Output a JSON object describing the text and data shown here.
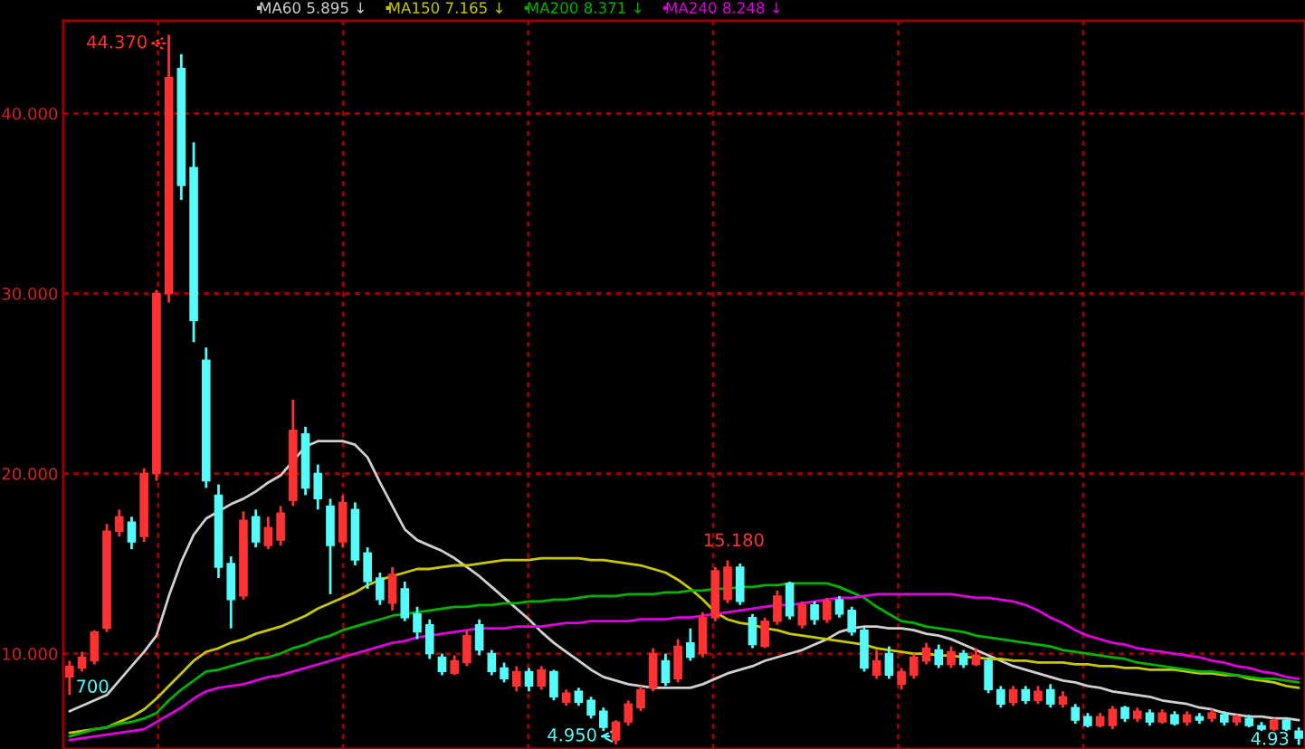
{
  "chart_data": {
    "type": "candlestick",
    "categories": [
      null,
      null,
      null,
      null,
      null,
      null,
      null,
      null,
      null,
      null,
      null,
      null,
      null,
      null,
      null,
      null,
      null,
      null,
      null,
      null,
      null,
      null,
      null,
      null,
      null,
      null,
      null,
      null,
      null,
      null,
      null,
      null,
      null,
      null,
      null,
      null,
      null,
      null,
      null,
      null,
      null,
      null,
      null,
      null,
      null,
      null,
      null,
      null,
      null,
      null,
      null,
      null,
      null,
      null,
      null,
      null,
      null,
      null,
      null,
      null,
      null,
      null,
      null,
      null,
      null,
      null,
      null,
      null,
      null,
      null,
      null,
      null,
      null,
      null,
      null,
      null,
      null,
      null,
      null,
      null,
      null,
      null,
      null,
      null,
      null,
      null,
      null,
      null,
      null,
      null,
      null,
      null,
      null,
      null,
      null,
      null,
      null,
      null,
      null,
      null
    ],
    "ohlc": [
      [
        8.7,
        9.6,
        7.7,
        9.3
      ],
      [
        9.2,
        10.1,
        9.0,
        9.8
      ],
      [
        9.6,
        11.3,
        9.4,
        11.2
      ],
      [
        11.4,
        17.2,
        11.2,
        16.8
      ],
      [
        16.8,
        18.0,
        16.5,
        17.6
      ],
      [
        17.3,
        17.6,
        15.8,
        16.2
      ],
      [
        16.5,
        20.3,
        16.2,
        20.0
      ],
      [
        20.0,
        30.2,
        19.6,
        30.0
      ],
      [
        30.0,
        44.37,
        29.5,
        42.0
      ],
      [
        42.5,
        43.3,
        35.2,
        36.0
      ],
      [
        37.0,
        38.4,
        27.3,
        28.5
      ],
      [
        26.3,
        27.0,
        19.2,
        19.6
      ],
      [
        18.8,
        19.4,
        14.2,
        14.8
      ],
      [
        15.0,
        15.4,
        11.4,
        13.0
      ],
      [
        13.2,
        17.9,
        13.0,
        17.4
      ],
      [
        17.6,
        18.0,
        15.9,
        16.2
      ],
      [
        16.0,
        17.6,
        15.8,
        17.0
      ],
      [
        16.3,
        18.2,
        16.0,
        17.8
      ],
      [
        18.5,
        24.1,
        18.2,
        22.4
      ],
      [
        22.2,
        22.6,
        18.8,
        19.2
      ],
      [
        20.0,
        20.5,
        18.0,
        18.6
      ],
      [
        18.2,
        18.6,
        13.3,
        16.0
      ],
      [
        16.2,
        18.8,
        15.9,
        18.4
      ],
      [
        18.0,
        18.4,
        14.9,
        15.2
      ],
      [
        15.6,
        15.9,
        13.6,
        14.0
      ],
      [
        14.2,
        14.5,
        12.7,
        13.0
      ],
      [
        12.8,
        14.8,
        12.4,
        14.4
      ],
      [
        13.6,
        14.0,
        11.8,
        12.0
      ],
      [
        12.2,
        12.6,
        10.8,
        11.2
      ],
      [
        11.6,
        11.9,
        9.7,
        10.0
      ],
      [
        9.8,
        10.0,
        8.8,
        9.0
      ],
      [
        8.9,
        9.9,
        8.8,
        9.6
      ],
      [
        9.5,
        11.3,
        9.3,
        11.0
      ],
      [
        11.6,
        11.9,
        9.9,
        10.2
      ],
      [
        10.0,
        10.2,
        8.8,
        9.0
      ],
      [
        9.2,
        9.5,
        8.4,
        8.6
      ],
      [
        8.2,
        9.3,
        7.9,
        9.0
      ],
      [
        9.0,
        9.2,
        7.9,
        8.2
      ],
      [
        8.2,
        9.3,
        8.0,
        9.1
      ],
      [
        9.0,
        9.1,
        7.4,
        7.6
      ],
      [
        7.3,
        8.0,
        7.1,
        7.8
      ],
      [
        7.9,
        8.1,
        7.1,
        7.3
      ],
      [
        7.4,
        7.6,
        6.4,
        6.6
      ],
      [
        6.8,
        7.0,
        5.7,
        5.9
      ],
      [
        5.2,
        6.3,
        4.95,
        6.2
      ],
      [
        6.2,
        7.4,
        6.0,
        7.2
      ],
      [
        7.0,
        8.2,
        6.8,
        8.0
      ],
      [
        8.1,
        10.3,
        7.9,
        10.0
      ],
      [
        9.6,
        10.0,
        8.2,
        8.4
      ],
      [
        8.6,
        10.8,
        8.4,
        10.4
      ],
      [
        10.6,
        11.4,
        9.6,
        9.8
      ],
      [
        10.0,
        12.3,
        9.8,
        12.0
      ],
      [
        12.0,
        14.8,
        11.8,
        14.6
      ],
      [
        13.0,
        15.18,
        12.8,
        14.8
      ],
      [
        14.8,
        15.0,
        12.7,
        12.9
      ],
      [
        12.0,
        12.2,
        10.3,
        10.5
      ],
      [
        10.4,
        12.0,
        10.3,
        11.8
      ],
      [
        11.8,
        13.5,
        11.6,
        13.2
      ],
      [
        13.9,
        14.0,
        11.9,
        12.1
      ],
      [
        11.6,
        12.9,
        11.4,
        12.7
      ],
      [
        12.7,
        12.9,
        11.6,
        11.9
      ],
      [
        11.9,
        13.1,
        11.7,
        12.9
      ],
      [
        13.0,
        13.2,
        12.0,
        12.2
      ],
      [
        12.4,
        12.6,
        11.0,
        11.2
      ],
      [
        11.3,
        11.5,
        9.0,
        9.2
      ],
      [
        8.8,
        10.2,
        8.6,
        9.6
      ],
      [
        10.0,
        10.4,
        8.6,
        8.8
      ],
      [
        8.3,
        9.2,
        8.0,
        9.0
      ],
      [
        8.8,
        10.0,
        8.6,
        9.8
      ],
      [
        9.6,
        10.6,
        9.4,
        10.3
      ],
      [
        10.2,
        10.5,
        9.2,
        9.4
      ],
      [
        9.4,
        10.4,
        9.2,
        10.1
      ],
      [
        10.0,
        10.2,
        9.2,
        9.4
      ],
      [
        9.4,
        10.3,
        9.3,
        9.9
      ],
      [
        9.6,
        9.8,
        7.8,
        8.0
      ],
      [
        8.0,
        8.2,
        7.0,
        7.2
      ],
      [
        7.3,
        8.2,
        7.1,
        8.0
      ],
      [
        8.0,
        8.2,
        7.2,
        7.4
      ],
      [
        7.4,
        8.2,
        7.2,
        7.9
      ],
      [
        8.0,
        8.3,
        7.0,
        7.2
      ],
      [
        7.2,
        7.9,
        7.0,
        7.6
      ],
      [
        7.0,
        7.2,
        6.1,
        6.3
      ],
      [
        6.5,
        6.7,
        5.9,
        6.0
      ],
      [
        6.0,
        6.7,
        5.9,
        6.5
      ],
      [
        6.0,
        7.1,
        5.8,
        6.9
      ],
      [
        7.0,
        7.1,
        6.2,
        6.4
      ],
      [
        6.4,
        7.0,
        6.2,
        6.8
      ],
      [
        6.7,
        6.9,
        6.0,
        6.2
      ],
      [
        6.2,
        6.9,
        6.1,
        6.7
      ],
      [
        6.6,
        6.8,
        6.0,
        6.1
      ],
      [
        6.2,
        6.8,
        6.0,
        6.6
      ],
      [
        6.5,
        6.7,
        6.1,
        6.3
      ],
      [
        6.4,
        6.9,
        6.2,
        6.7
      ],
      [
        6.6,
        6.8,
        6.0,
        6.2
      ],
      [
        6.2,
        6.6,
        6.0,
        6.5
      ],
      [
        6.4,
        6.6,
        5.9,
        6.0
      ],
      [
        6.0,
        6.2,
        5.7,
        5.8
      ],
      [
        5.8,
        6.4,
        5.7,
        6.3
      ],
      [
        6.3,
        6.4,
        5.7,
        5.8
      ],
      [
        5.7,
        5.9,
        4.93,
        5.3
      ]
    ],
    "colors": [
      "#ff3232",
      "#ff3232",
      "#ff3232",
      "#ff3232",
      "#ff3232",
      "#54fcfc",
      "#ff3232",
      "#ff3232",
      "#ff3232",
      "#54fcfc",
      "#54fcfc",
      "#54fcfc",
      "#54fcfc",
      "#54fcfc",
      "#ff3232",
      "#54fcfc",
      "#ff3232",
      "#ff3232",
      "#ff3232",
      "#54fcfc",
      "#54fcfc",
      "#54fcfc",
      "#ff3232",
      "#54fcfc",
      "#54fcfc",
      "#54fcfc",
      "#ff3232",
      "#54fcfc",
      "#54fcfc",
      "#54fcfc",
      "#54fcfc",
      "#ff3232",
      "#ff3232",
      "#54fcfc",
      "#54fcfc",
      "#54fcfc",
      "#ff3232",
      "#54fcfc",
      "#ff3232",
      "#54fcfc",
      "#ff3232",
      "#54fcfc",
      "#54fcfc",
      "#54fcfc",
      "#ff3232",
      "#ff3232",
      "#ff3232",
      "#ff3232",
      "#54fcfc",
      "#ff3232",
      "#54fcfc",
      "#ff3232",
      "#ff3232",
      "#ff3232",
      "#54fcfc",
      "#54fcfc",
      "#ff3232",
      "#ff3232",
      "#54fcfc",
      "#ff3232",
      "#54fcfc",
      "#ff3232",
      "#54fcfc",
      "#54fcfc",
      "#54fcfc",
      "#ff3232",
      "#54fcfc",
      "#ff3232",
      "#ff3232",
      "#ff3232",
      "#54fcfc",
      "#ff3232",
      "#54fcfc",
      "#ff3232",
      "#54fcfc",
      "#54fcfc",
      "#ff3232",
      "#54fcfc",
      "#ff3232",
      "#54fcfc",
      "#ff3232",
      "#54fcfc",
      "#54fcfc",
      "#ff3232",
      "#ff3232",
      "#54fcfc",
      "#ff3232",
      "#54fcfc",
      "#ff3232",
      "#54fcfc",
      "#ff3232",
      "#54fcfc",
      "#ff3232",
      "#54fcfc",
      "#ff3232",
      "#54fcfc",
      "#54fcfc",
      "#ff3232",
      "#54fcfc",
      "#54fcfc"
    ],
    "series": [
      {
        "name": "MA60 5.895 ↓",
        "color": "#d0d0d0",
        "type": "line",
        "values": [
          6.8,
          7.1,
          7.4,
          7.7,
          8.5,
          9.3,
          10.1,
          11.0,
          13.2,
          15.1,
          16.6,
          17.5,
          17.9,
          18.3,
          18.6,
          19.0,
          19.5,
          19.9,
          20.7,
          21.5,
          21.8,
          21.8,
          21.8,
          21.6,
          20.9,
          19.5,
          18.2,
          16.9,
          16.3,
          16.0,
          15.7,
          15.3,
          14.8,
          14.3,
          13.7,
          13.1,
          12.5,
          11.9,
          11.2,
          10.6,
          10.1,
          9.6,
          9.1,
          8.7,
          8.5,
          8.3,
          8.2,
          8.1,
          8.1,
          8.1,
          8.1,
          8.3,
          8.6,
          8.9,
          9.1,
          9.3,
          9.6,
          9.8,
          10.0,
          10.2,
          10.5,
          10.8,
          11.2,
          11.4,
          11.5,
          11.5,
          11.4,
          11.4,
          11.3,
          11.1,
          11.0,
          10.8,
          10.5,
          10.2,
          9.9,
          9.6,
          9.3,
          9.1,
          8.9,
          8.7,
          8.5,
          8.4,
          8.2,
          8.1,
          7.9,
          7.8,
          7.7,
          7.6,
          7.4,
          7.3,
          7.2,
          7.0,
          6.9,
          6.7,
          6.6,
          6.5,
          6.5,
          6.4,
          6.4,
          6.3
        ]
      },
      {
        "name": "MA150 7.165 ↓",
        "color": "#c8c800",
        "type": "line",
        "values": [
          5.6,
          5.7,
          5.8,
          5.9,
          6.2,
          6.5,
          6.9,
          7.5,
          8.2,
          8.9,
          9.6,
          10.1,
          10.3,
          10.6,
          10.8,
          11.1,
          11.3,
          11.5,
          11.8,
          12.1,
          12.5,
          12.8,
          13.1,
          13.4,
          13.8,
          14.1,
          14.3,
          14.5,
          14.7,
          14.7,
          14.8,
          14.9,
          14.9,
          15.0,
          15.1,
          15.2,
          15.2,
          15.2,
          15.3,
          15.3,
          15.3,
          15.3,
          15.2,
          15.2,
          15.1,
          15.0,
          14.9,
          14.7,
          14.5,
          14.1,
          13.6,
          13.0,
          12.3,
          11.9,
          11.7,
          11.6,
          11.4,
          11.3,
          11.1,
          11.0,
          10.9,
          10.8,
          10.7,
          10.6,
          10.5,
          10.3,
          10.2,
          10.1,
          10.0,
          10.0,
          9.9,
          9.9,
          9.8,
          9.8,
          9.7,
          9.7,
          9.6,
          9.6,
          9.5,
          9.5,
          9.5,
          9.4,
          9.4,
          9.3,
          9.3,
          9.2,
          9.2,
          9.1,
          9.1,
          9.1,
          9.0,
          8.9,
          8.9,
          8.8,
          8.8,
          8.6,
          8.5,
          8.4,
          8.2,
          8.1
        ]
      },
      {
        "name": "MA200 8.371 ↓",
        "color": "#00b400",
        "type": "line",
        "values": [
          5.4,
          5.6,
          5.8,
          5.9,
          6.1,
          6.2,
          6.4,
          6.7,
          7.4,
          8.0,
          8.5,
          9.0,
          9.1,
          9.3,
          9.5,
          9.7,
          9.8,
          10.0,
          10.3,
          10.5,
          10.8,
          11.0,
          11.3,
          11.5,
          11.7,
          11.9,
          12.1,
          12.2,
          12.3,
          12.4,
          12.5,
          12.6,
          12.6,
          12.7,
          12.7,
          12.8,
          12.8,
          12.9,
          12.9,
          13.0,
          13.0,
          13.1,
          13.2,
          13.2,
          13.2,
          13.3,
          13.3,
          13.3,
          13.4,
          13.4,
          13.5,
          13.5,
          13.6,
          13.6,
          13.7,
          13.7,
          13.8,
          13.8,
          13.9,
          13.9,
          13.9,
          13.9,
          13.7,
          13.4,
          13.1,
          12.6,
          12.2,
          11.8,
          11.7,
          11.5,
          11.4,
          11.3,
          11.2,
          11.0,
          10.9,
          10.8,
          10.7,
          10.6,
          10.5,
          10.4,
          10.2,
          10.1,
          10.0,
          9.9,
          9.8,
          9.7,
          9.5,
          9.4,
          9.3,
          9.2,
          9.1,
          9.0,
          9.0,
          8.9,
          8.8,
          8.7,
          8.6,
          8.6,
          8.5,
          8.4
        ]
      },
      {
        "name": "MA240 8.248 ↓",
        "color": "#e000e0",
        "type": "line",
        "values": [
          5.2,
          5.3,
          5.4,
          5.5,
          5.6,
          5.7,
          5.8,
          6.2,
          6.6,
          7.0,
          7.5,
          7.9,
          8.1,
          8.2,
          8.3,
          8.5,
          8.7,
          8.8,
          9.0,
          9.2,
          9.4,
          9.6,
          9.8,
          10.0,
          10.2,
          10.4,
          10.6,
          10.7,
          10.9,
          11.0,
          11.1,
          11.2,
          11.3,
          11.4,
          11.4,
          11.4,
          11.5,
          11.5,
          11.5,
          11.6,
          11.7,
          11.7,
          11.8,
          11.8,
          11.8,
          11.8,
          11.9,
          11.9,
          11.9,
          12.0,
          12.0,
          12.1,
          12.2,
          12.3,
          12.4,
          12.5,
          12.6,
          12.7,
          12.7,
          12.8,
          12.9,
          13.0,
          13.1,
          13.1,
          13.2,
          13.3,
          13.3,
          13.3,
          13.3,
          13.3,
          13.3,
          13.3,
          13.2,
          13.1,
          13.1,
          13.0,
          12.9,
          12.7,
          12.4,
          12.0,
          11.7,
          11.3,
          11.0,
          10.8,
          10.6,
          10.5,
          10.3,
          10.2,
          10.1,
          10.0,
          9.9,
          9.8,
          9.6,
          9.5,
          9.3,
          9.2,
          9.0,
          8.9,
          8.7,
          8.6
        ]
      }
    ],
    "ylim": [
      4.7,
      45.15
    ],
    "yticks": [
      {
        "value": 10,
        "label": "10.000"
      },
      {
        "value": 20,
        "label": "20.000"
      },
      {
        "value": 30,
        "label": "30.000"
      },
      {
        "value": 40,
        "label": "40.000"
      }
    ],
    "tick_labels": "y",
    "grid": true,
    "legend": "top",
    "annotations": [
      "44.370",
      "15.180",
      "4.950",
      "700",
      "4.93"
    ]
  }
}
